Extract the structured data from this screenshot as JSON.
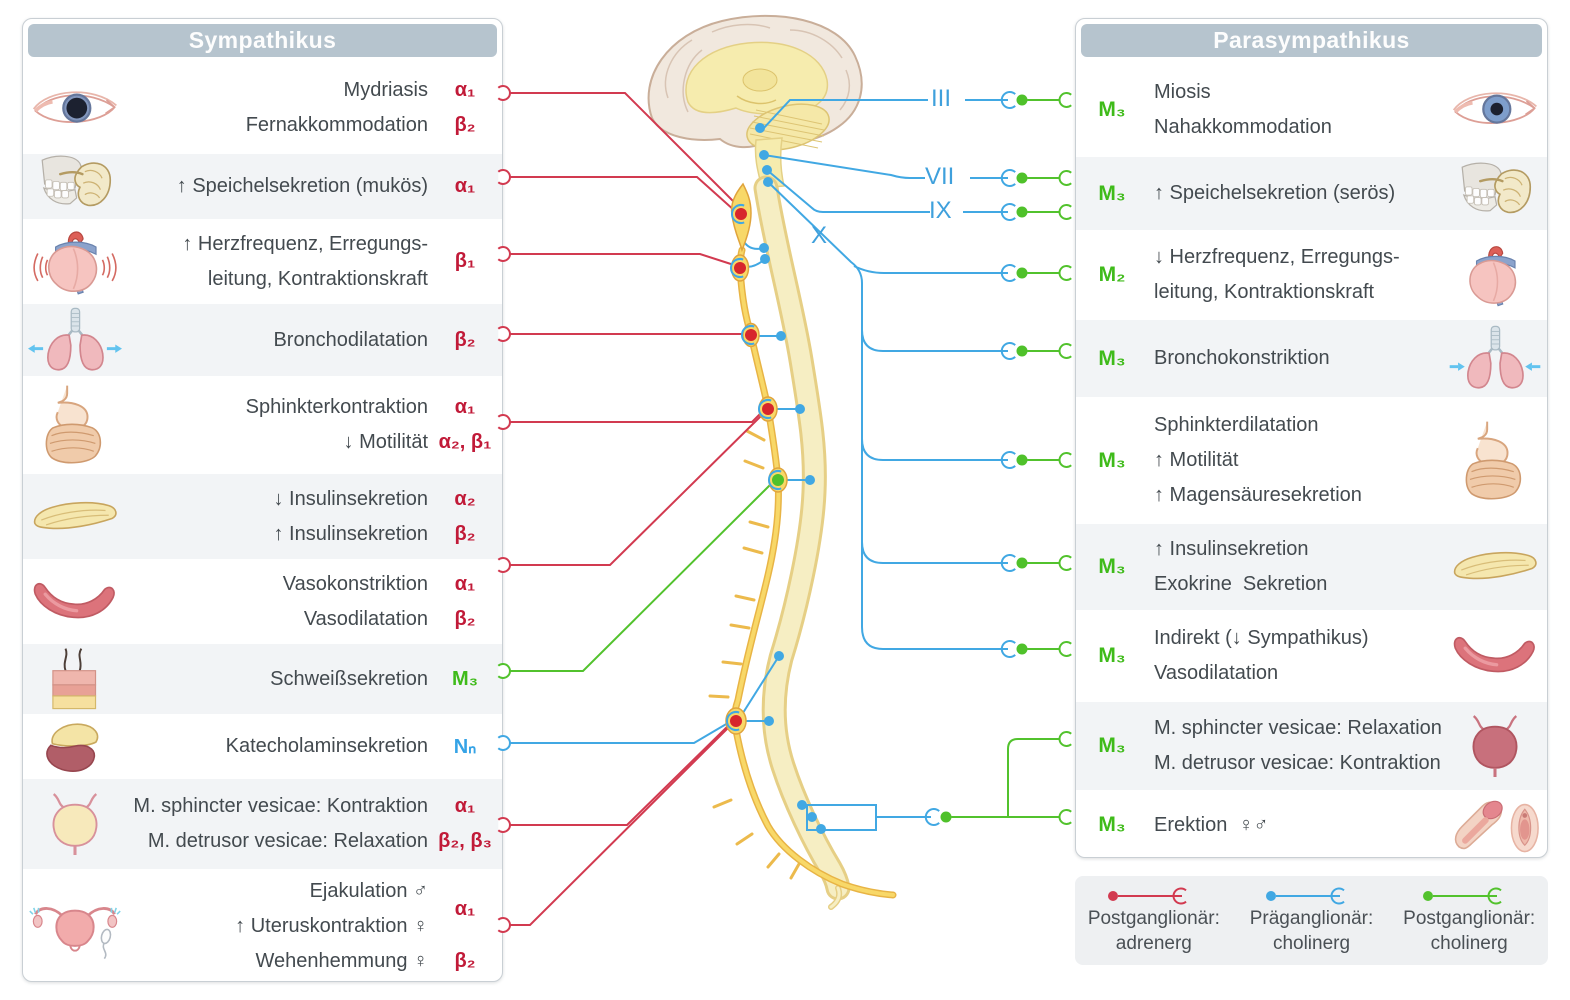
{
  "left_panel": {
    "title": "Sympathikus",
    "rows": [
      {
        "icon": "eye",
        "lines": [
          "Mydriasis",
          "Fernakkommodation"
        ],
        "receptors": [
          {
            "text": "α₁",
            "color": "red",
            "span": 1
          },
          {
            "text": "β₂",
            "color": "red",
            "span": 1
          }
        ]
      },
      {
        "icon": "jaw",
        "lines": [
          "↑ Speichelsekretion (mukös)"
        ],
        "receptors": [
          {
            "text": "α₁",
            "color": "red",
            "span": 1
          }
        ]
      },
      {
        "icon": "heart",
        "lines": [
          "↑ Herzfrequenz, Erregungs-",
          "leitung, Kontraktionskraft"
        ],
        "receptors": [
          {
            "text": "β₁",
            "color": "red",
            "span": 2
          }
        ]
      },
      {
        "icon": "lungs",
        "lines": [
          "Bronchodilatation"
        ],
        "receptors": [
          {
            "text": "β₂",
            "color": "red",
            "span": 1
          }
        ]
      },
      {
        "icon": "gi",
        "lines": [
          "Sphinkterkontraktion",
          "↓ Motilität"
        ],
        "receptors": [
          {
            "text": "α₁",
            "color": "red",
            "span": 1
          },
          {
            "text": "α₂, β₁",
            "color": "red",
            "span": 1
          }
        ]
      },
      {
        "icon": "pancreas",
        "lines": [
          "↓ Insulinsekretion",
          "↑ Insulinsekretion"
        ],
        "receptors": [
          {
            "text": "α₂",
            "color": "red",
            "span": 1
          },
          {
            "text": "β₂",
            "color": "red",
            "span": 1
          }
        ]
      },
      {
        "icon": "vessel",
        "lines": [
          "Vasokonstriktion",
          "Vasodilatation"
        ],
        "receptors": [
          {
            "text": "α₁",
            "color": "red",
            "span": 1
          },
          {
            "text": "β₂",
            "color": "red",
            "span": 1
          }
        ]
      },
      {
        "icon": "skin",
        "lines": [
          "Schweißsekretion"
        ],
        "receptors": [
          {
            "text": "M₃",
            "color": "green",
            "span": 1
          }
        ]
      },
      {
        "icon": "adrenal",
        "lines": [
          "Katecholaminsekretion"
        ],
        "receptors": [
          {
            "text": "Nₙ",
            "color": "blue",
            "span": 1
          }
        ]
      },
      {
        "icon": "bladder",
        "lines": [
          "M. sphincter vesicae: Kontraktion",
          "M. detrusor vesicae: Relaxation"
        ],
        "receptors": [
          {
            "text": "α₁",
            "color": "red",
            "span": 1
          },
          {
            "text": "β₂, β₃",
            "color": "red",
            "span": 1
          }
        ]
      },
      {
        "icon": "uterus",
        "lines": [
          "Ejakulation ♂",
          "↑ Uteruskontraktion ♀",
          "Wehenhemmung ♀"
        ],
        "receptors": [
          {
            "text": "α₁",
            "color": "red",
            "span": 2
          },
          {
            "text": "β₂",
            "color": "red",
            "span": 1
          }
        ]
      }
    ]
  },
  "right_panel": {
    "title": "Parasympathikus",
    "rows": [
      {
        "icon": "eye-r",
        "receptor": "M₃",
        "lines": [
          "Miosis",
          "Nahakkommodation"
        ]
      },
      {
        "icon": "jaw",
        "receptor": "M₃",
        "lines": [
          "↑ Speichelsekretion (serös)"
        ]
      },
      {
        "icon": "heart-r",
        "receptor": "M₂",
        "lines": [
          "↓ Herzfrequenz, Erregungs-",
          "leitung, Kontraktionskraft"
        ]
      },
      {
        "icon": "lungs-r",
        "receptor": "M₃",
        "lines": [
          "Bronchokonstriktion"
        ]
      },
      {
        "icon": "gi",
        "receptor": "M₃",
        "lines": [
          "Sphinkterdilatation",
          "↑ Motilität",
          "↑ Magensäuresekretion"
        ]
      },
      {
        "icon": "pancreas",
        "receptor": "M₃",
        "lines": [
          "↑ Insulinsekretion",
          "Exokrine  Sekretion"
        ]
      },
      {
        "icon": "vessel",
        "receptor": "M₃",
        "lines": [
          "Indirekt (↓ Sympathikus)",
          "Vasodilatation"
        ]
      },
      {
        "icon": "bladder-r",
        "receptor": "M₃",
        "lines": [
          "M. sphincter vesicae: Relaxation",
          "M. detrusor vesicae: Kontraktion"
        ]
      },
      {
        "icon": "genitals",
        "receptor": "M₃",
        "lines": [
          "Erektion  ♀♂"
        ]
      }
    ]
  },
  "cranial_nerves": {
    "iii": "III",
    "vii": "VII",
    "ix": "IX",
    "x": "X"
  },
  "legend": {
    "items": [
      {
        "color": "red",
        "line1": "Postganglionär:",
        "line2": "adrenerg"
      },
      {
        "color": "blue",
        "line1": "Präganglionär:",
        "line2": "cholinerg"
      },
      {
        "color": "green",
        "line1": "Postganglionär:",
        "line2": "cholinerg"
      }
    ]
  },
  "colors": {
    "red": "#c11a38",
    "blue": "#35a3e6",
    "green": "#3fbb1a",
    "line_red": "#d23a50",
    "line_blue": "#41a8e3",
    "line_green": "#52c22d",
    "header_bg": "#b6c4ce",
    "alt_row": "#f2f4f6",
    "cns_yellow": "#f6ecae",
    "chain_yellow": "#f8d868"
  }
}
